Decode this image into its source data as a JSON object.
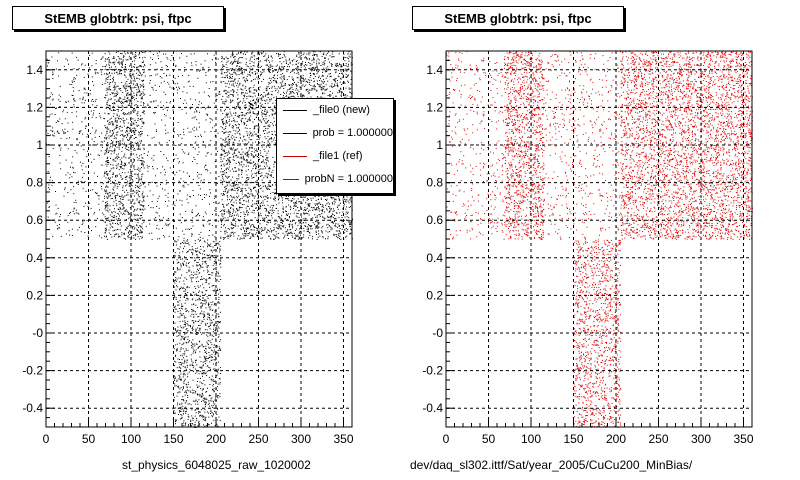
{
  "chart_data": [
    {
      "type": "scatter",
      "title": "StEMB globtrk: psi, ftpc",
      "caption": "st_physics_6048025_raw_1020002",
      "series_color": "#000000",
      "xlim": [
        0,
        360
      ],
      "ylim": [
        -0.5,
        1.5
      ],
      "xticks": [
        "0",
        "50",
        "100",
        "150",
        "200",
        "250",
        "300",
        "350"
      ],
      "xtick_values": [
        0,
        50,
        100,
        150,
        200,
        250,
        300,
        350
      ],
      "yticks": [
        "-0.4",
        "-0.2",
        "-0",
        "0.2",
        "0.4",
        "0.6",
        "0.8",
        "1",
        "1.2",
        "1.4"
      ],
      "ytick_values": [
        -0.4,
        -0.2,
        0,
        0.2,
        0.4,
        0.6,
        0.8,
        1.0,
        1.2,
        1.4
      ],
      "grid": true,
      "point_density_regions": [
        {
          "x": [
            0,
            360
          ],
          "y": [
            0.5,
            1.5
          ],
          "density": 0.25
        },
        {
          "x": [
            68,
            115
          ],
          "y": [
            0.5,
            1.5
          ],
          "density": 1.0
        },
        {
          "x": [
            150,
            205
          ],
          "y": [
            -0.5,
            0.5
          ],
          "density": 1.0
        },
        {
          "x": [
            205,
            360
          ],
          "y": [
            0.5,
            1.5
          ],
          "density": 0.9
        }
      ],
      "legend": {
        "placement": "top-right",
        "entries": [
          {
            "label": "_file0 (new)",
            "color": "#000000"
          },
          {
            "label": "prob = 1.000000",
            "color": "#000000"
          },
          {
            "label": "_file1 (ref)",
            "color": "#cc0000"
          },
          {
            "label": "probN = 1.000000",
            "color": "#cc0000"
          }
        ]
      }
    },
    {
      "type": "scatter",
      "title": "StEMB globtrk: psi, ftpc",
      "caption": "dev/daq_sl302.ittf/Sat/year_2005/CuCu200_MinBias/",
      "series_color": "#dd0000",
      "xlim": [
        0,
        360
      ],
      "ylim": [
        -0.5,
        1.5
      ],
      "xticks": [
        "0",
        "50",
        "100",
        "150",
        "200",
        "250",
        "300",
        "350"
      ],
      "xtick_values": [
        0,
        50,
        100,
        150,
        200,
        250,
        300,
        350
      ],
      "yticks": [
        "-0.4",
        "-0.2",
        "-0",
        "0.2",
        "0.4",
        "0.6",
        "0.8",
        "1",
        "1.2",
        "1.4"
      ],
      "ytick_values": [
        -0.4,
        -0.2,
        0,
        0.2,
        0.4,
        0.6,
        0.8,
        1.0,
        1.2,
        1.4
      ],
      "grid": true,
      "point_density_regions": [
        {
          "x": [
            0,
            360
          ],
          "y": [
            0.5,
            1.5
          ],
          "density": 0.25
        },
        {
          "x": [
            68,
            115
          ],
          "y": [
            0.5,
            1.5
          ],
          "density": 1.0
        },
        {
          "x": [
            150,
            205
          ],
          "y": [
            -0.5,
            0.5
          ],
          "density": 1.0
        },
        {
          "x": [
            205,
            360
          ],
          "y": [
            0.5,
            1.5
          ],
          "density": 0.9
        }
      ]
    }
  ]
}
